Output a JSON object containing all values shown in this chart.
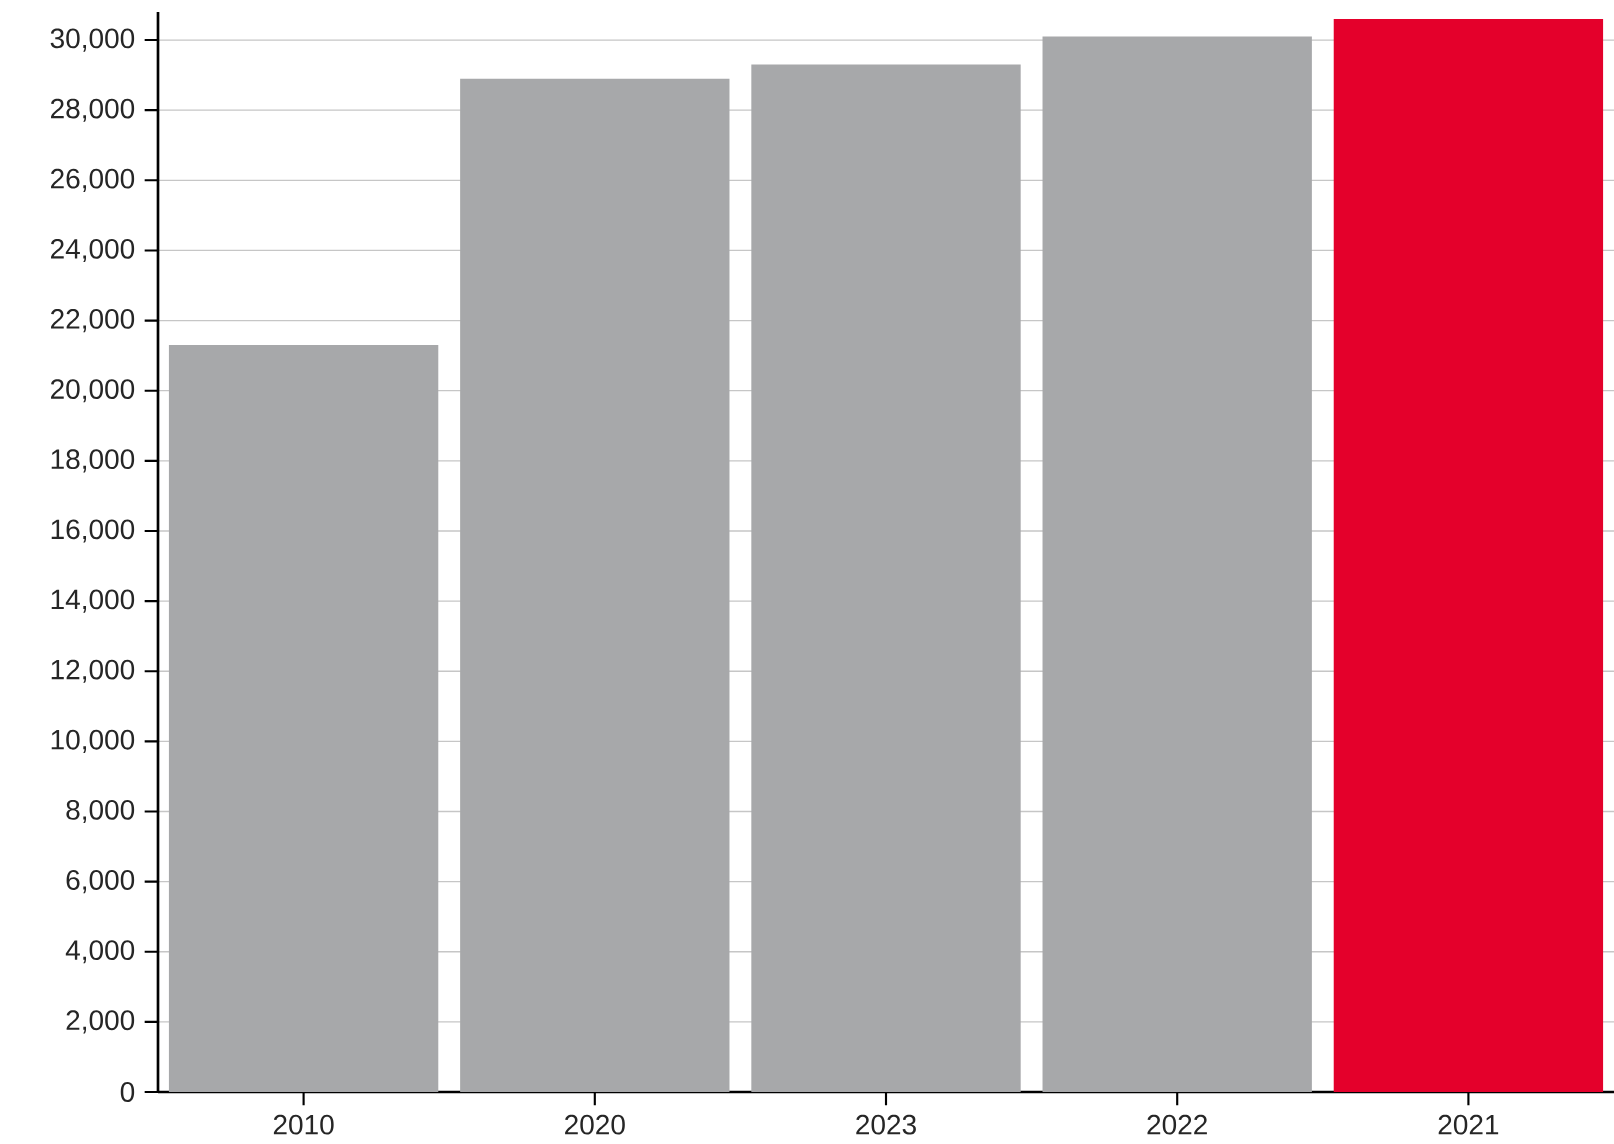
{
  "chart_data": {
    "type": "bar",
    "categories": [
      "2010",
      "2020",
      "2023",
      "2022",
      "2021"
    ],
    "values": [
      21300,
      28900,
      29300,
      30100,
      30600
    ],
    "colors": [
      "#a7a8aa",
      "#a7a8aa",
      "#a7a8aa",
      "#a7a8aa",
      "#e4002b"
    ],
    "ylim": [
      0,
      30800
    ],
    "yticks": [
      0,
      {
        "value": 2000,
        "label": "2,000"
      },
      {
        "value": 4000,
        "label": "4,000"
      },
      {
        "value": 6000,
        "label": "6,000"
      },
      {
        "value": 8000,
        "label": "8,000"
      },
      {
        "value": 10000,
        "label": "10,000"
      },
      {
        "value": 12000,
        "label": "12,000"
      },
      {
        "value": 14000,
        "label": "14,000"
      },
      {
        "value": 16000,
        "label": "16,000"
      },
      {
        "value": 18000,
        "label": "18,000"
      },
      {
        "value": 20000,
        "label": "20,000"
      },
      {
        "value": 22000,
        "label": "22,000"
      },
      {
        "value": 24000,
        "label": "24,000"
      },
      {
        "value": 26000,
        "label": "26,000"
      },
      {
        "value": 28000,
        "label": "28,000"
      },
      {
        "value": 30000,
        "label": "30,000"
      }
    ],
    "grid": "y"
  }
}
